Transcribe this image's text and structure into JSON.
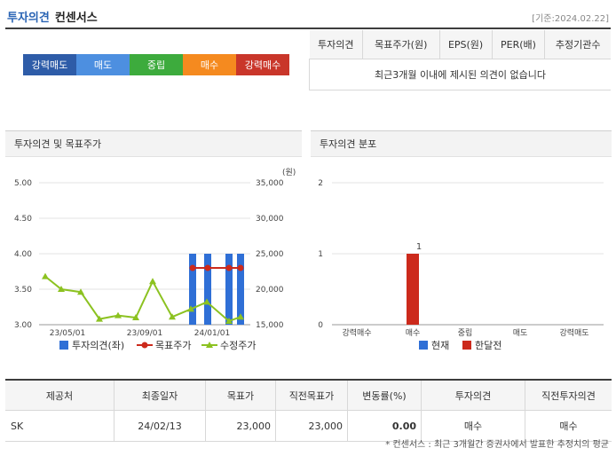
{
  "header": {
    "title_main": "투자의견",
    "title_sub": "컨센서스",
    "date": "[기준:2024.02.22]"
  },
  "rating_scale": [
    {
      "label": "강력매도",
      "color": "#2e5ca8"
    },
    {
      "label": "매도",
      "color": "#4d8fe0"
    },
    {
      "label": "중립",
      "color": "#3dab3d"
    },
    {
      "label": "매수",
      "color": "#f58a1f"
    },
    {
      "label": "강력매수",
      "color": "#c9362a"
    }
  ],
  "summary": {
    "headers": [
      "투자의견",
      "목표주가(원)",
      "EPS(원)",
      "PER(배)",
      "추정기관수"
    ],
    "message": "최근3개월 이내에 제시된 의견이 없습니다"
  },
  "left_panel": {
    "title": "투자의견 및 목표주가",
    "unit": "(원)",
    "legend": [
      "투자의견(좌)",
      "목표주가",
      "수정주가"
    ],
    "colors": {
      "bar": "#2f6fd6",
      "target": "#cc2a1c",
      "price": "#8cc221"
    }
  },
  "right_panel": {
    "title": "투자의견 분포",
    "legend": [
      "현재",
      "한달전"
    ],
    "colors": {
      "current": "#2f6fd6",
      "prev": "#cc2a1c"
    }
  },
  "chart_data": [
    {
      "type": "bar",
      "left_axis": {
        "ticks": [
          "5.00",
          "4.50",
          "4.00",
          "3.50",
          "3.00"
        ],
        "range": [
          3.0,
          5.0
        ]
      },
      "right_axis": {
        "ticks": [
          "35,000",
          "30,000",
          "25,000",
          "20,000",
          "15,000"
        ],
        "range": [
          15000,
          35000
        ]
      },
      "x_ticks": [
        "23/05/01",
        "23/09/01",
        "24/01/01"
      ],
      "series": [
        {
          "name": "투자의견(좌)",
          "kind": "bar",
          "values": [
            4.0,
            4.0,
            4.0,
            4.0
          ]
        },
        {
          "name": "목표주가",
          "kind": "line",
          "values": [
            23000,
            23000,
            23000,
            23000
          ]
        },
        {
          "name": "수정주가",
          "kind": "line",
          "values": [
            21800,
            20000,
            19600,
            15800,
            16300,
            16000,
            21100,
            16100,
            17200,
            18200,
            15500,
            16100
          ]
        }
      ]
    },
    {
      "type": "bar",
      "categories": [
        "강력매수",
        "매수",
        "중립",
        "매도",
        "강력매도"
      ],
      "y_ticks": [
        "2",
        "1",
        "0"
      ],
      "ylim": [
        0,
        2
      ],
      "series": [
        {
          "name": "현재",
          "values": [
            0,
            0,
            0,
            0,
            0
          ]
        },
        {
          "name": "한달전",
          "values": [
            0,
            1,
            0,
            0,
            0
          ]
        }
      ],
      "data_labels": [
        "1"
      ]
    }
  ],
  "detail_table": {
    "headers": [
      "제공처",
      "최종일자",
      "목표가",
      "직전목표가",
      "변동률(%)",
      "투자의견",
      "직전투자의견"
    ],
    "rows": [
      {
        "provider": "SK",
        "date": "24/02/13",
        "target": "23,000",
        "prev_target": "23,000",
        "change": "0.00",
        "opinion": "매수",
        "prev_opinion": "매수"
      }
    ]
  },
  "footnote": "* 컨센서스 : 최근 3개월간 증권사에서 발표한 추정치의 평균"
}
